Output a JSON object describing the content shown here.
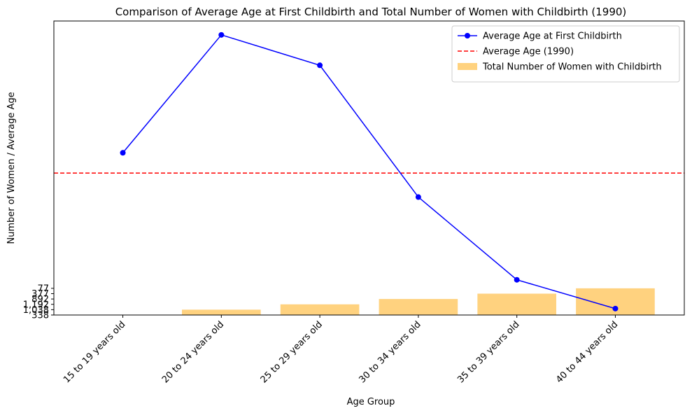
{
  "chart_data": {
    "type": "combo",
    "title": "Comparison of Average Age at First Childbirth and Total Number of Women with Childbirth (1990)",
    "x_label": "Age Group",
    "y_label": "Number of Women / Average Age",
    "categories": [
      "15 to 19 years old",
      "20 to 24 years old",
      "25 to 29 years old",
      "30 to 34 years old",
      "35 to 39 years old",
      "40 to 44 years old"
    ],
    "series": [
      {
        "name": "Average Age at First Childbirth",
        "type": "line",
        "color": "#0000ff",
        "marker": "circle",
        "values": [
          30.4,
          52.5,
          46.8,
          22.1,
          6.6,
          1.2
        ]
      },
      {
        "name": "Total Number of Women with Childbirth",
        "type": "bar",
        "color": "#ffa500",
        "alpha": 0.5,
        "values": [
          0,
          1,
          2,
          3,
          4,
          5
        ]
      }
    ],
    "reference_lines": [
      {
        "name": "Average Age (1990)",
        "color": "#ff0000",
        "dashed": true,
        "value": 26.6
      }
    ],
    "ylim": [
      0,
      55.1
    ],
    "yticks": [
      {
        "value": 0,
        "label": "338"
      },
      {
        "value": 1,
        "label": "1,038"
      },
      {
        "value": 2,
        "label": "1,192"
      },
      {
        "value": 3,
        "label": "892"
      },
      {
        "value": 4,
        "label": "377"
      },
      {
        "value": 5,
        "label": "77"
      }
    ],
    "legend": "upper right"
  }
}
